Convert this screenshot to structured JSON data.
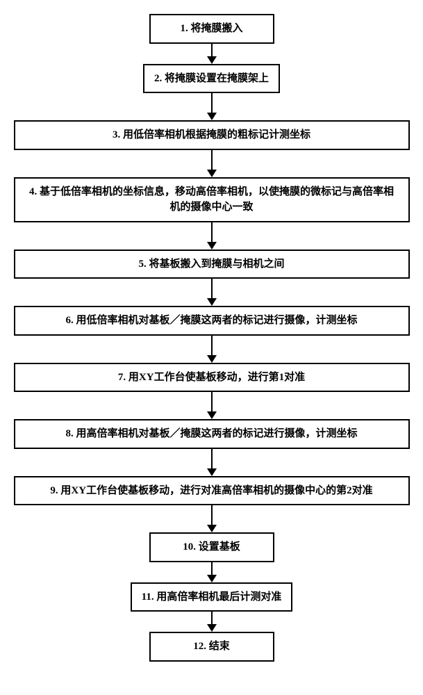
{
  "flowchart": {
    "type": "flowchart",
    "background_color": "#ffffff",
    "border_color": "#000000",
    "text_color": "#000000",
    "font_family": "SimSun",
    "font_size": 15,
    "border_width": 2,
    "arrow_color": "#000000",
    "arrow_line_width": 2,
    "arrow_head_size": 7,
    "box_padding": "8px 14px",
    "steps": [
      {
        "label": "1. 将掩膜搬入",
        "width": "narrow",
        "arrow_after_height": 18
      },
      {
        "label": "2. 将掩膜设置在掩膜架上",
        "width": "narrow",
        "arrow_after_height": 28
      },
      {
        "label": "3. 用低倍率相机根据掩膜的粗标记计测坐标",
        "width": "wide",
        "arrow_after_height": 28
      },
      {
        "label": "4. 基于低倍率相机的坐标信息，移动高倍率相机，以使掩膜的微标记与高倍率相机的摄像中心一致",
        "width": "wide",
        "arrow_after_height": 28
      },
      {
        "label": "5. 将基板搬入到掩膜与相机之间",
        "width": "wide",
        "arrow_after_height": 28
      },
      {
        "label": "6. 用低倍率相机对基板／掩膜这两者的标记进行摄像，计测坐标",
        "width": "wide",
        "arrow_after_height": 28
      },
      {
        "label": "7. 用XY工作台使基板移动，进行第1对准",
        "width": "wide",
        "arrow_after_height": 28
      },
      {
        "label": "8. 用高倍率相机对基板／掩膜这两者的标记进行摄像，计测坐标",
        "width": "wide",
        "arrow_after_height": 28
      },
      {
        "label": "9. 用XY工作台使基板移动，进行对准高倍率相机的摄像中心的第2对准",
        "width": "wide",
        "arrow_after_height": 28
      },
      {
        "label": "10. 设置基板",
        "width": "narrow",
        "arrow_after_height": 18
      },
      {
        "label": "11. 用高倍率相机最后计测对准",
        "width": "narrow",
        "arrow_after_height": 18
      },
      {
        "label": "12. 结束",
        "width": "narrow",
        "arrow_after_height": 0
      }
    ]
  }
}
